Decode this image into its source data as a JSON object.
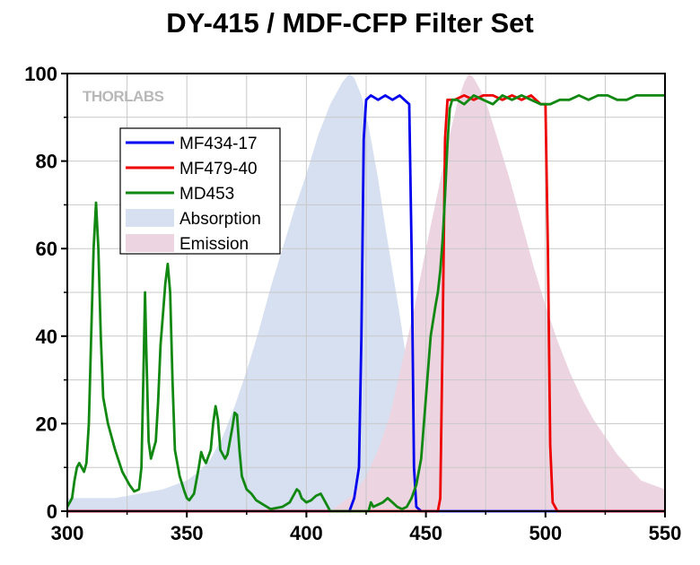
{
  "chart_data": {
    "type": "line",
    "title": "DY-415 / MDF-CFP Filter Set",
    "watermark": "THORLABS",
    "xlim": [
      300,
      550
    ],
    "ylim": [
      0,
      100
    ],
    "x_ticks": [
      300,
      350,
      400,
      450,
      500,
      550
    ],
    "y_ticks": [
      0,
      20,
      40,
      60,
      80,
      100
    ],
    "grid": true,
    "legend_position": "upper-left",
    "series": [
      {
        "name": "MF434-17",
        "kind": "line",
        "color": "#0000ee",
        "points": [
          [
            300,
            0
          ],
          [
            418,
            0
          ],
          [
            420,
            3
          ],
          [
            422,
            10
          ],
          [
            423,
            40
          ],
          [
            424,
            85
          ],
          [
            425,
            94
          ],
          [
            427,
            95
          ],
          [
            430,
            94
          ],
          [
            433,
            95
          ],
          [
            436,
            94
          ],
          [
            439,
            95
          ],
          [
            441,
            94
          ],
          [
            443,
            93
          ],
          [
            444,
            60
          ],
          [
            445,
            10
          ],
          [
            446,
            1
          ],
          [
            448,
            0
          ],
          [
            550,
            0
          ]
        ]
      },
      {
        "name": "MF479-40",
        "kind": "line",
        "color": "#ee0000",
        "points": [
          [
            300,
            0
          ],
          [
            455,
            0
          ],
          [
            456,
            3
          ],
          [
            457,
            40
          ],
          [
            458,
            85
          ],
          [
            459,
            94
          ],
          [
            462,
            94
          ],
          [
            466,
            95
          ],
          [
            470,
            94
          ],
          [
            474,
            95
          ],
          [
            478,
            95
          ],
          [
            482,
            94
          ],
          [
            486,
            95
          ],
          [
            490,
            94
          ],
          [
            494,
            95
          ],
          [
            498,
            93
          ],
          [
            500,
            93
          ],
          [
            501,
            60
          ],
          [
            502,
            15
          ],
          [
            503,
            2
          ],
          [
            505,
            0
          ],
          [
            550,
            0
          ]
        ]
      },
      {
        "name": "MD453",
        "kind": "line",
        "color": "#118811",
        "points": [
          [
            300,
            1
          ],
          [
            301,
            2
          ],
          [
            302,
            3
          ],
          [
            303,
            7
          ],
          [
            304,
            10
          ],
          [
            305,
            11
          ],
          [
            306,
            10
          ],
          [
            307,
            9
          ],
          [
            308,
            11
          ],
          [
            309,
            20
          ],
          [
            310,
            40
          ],
          [
            311,
            60
          ],
          [
            312,
            70.5
          ],
          [
            313,
            60
          ],
          [
            314,
            40
          ],
          [
            315,
            26
          ],
          [
            317,
            20
          ],
          [
            320,
            14
          ],
          [
            323,
            9
          ],
          [
            326,
            6
          ],
          [
            328,
            4.5
          ],
          [
            330,
            5
          ],
          [
            331,
            10
          ],
          [
            332,
            35
          ],
          [
            332.5,
            50
          ],
          [
            333,
            38
          ],
          [
            334,
            16
          ],
          [
            335,
            12
          ],
          [
            337,
            16
          ],
          [
            338,
            25
          ],
          [
            339,
            38
          ],
          [
            340,
            45
          ],
          [
            341,
            52
          ],
          [
            342,
            56.5
          ],
          [
            343,
            50
          ],
          [
            344,
            30
          ],
          [
            345,
            14
          ],
          [
            347,
            8
          ],
          [
            349,
            4.5
          ],
          [
            350,
            3
          ],
          [
            351,
            2.5
          ],
          [
            353,
            4
          ],
          [
            355,
            10
          ],
          [
            356,
            13.5
          ],
          [
            357,
            12
          ],
          [
            358,
            11
          ],
          [
            360,
            14
          ],
          [
            361,
            20
          ],
          [
            362,
            24
          ],
          [
            363,
            21
          ],
          [
            364,
            14
          ],
          [
            366,
            12
          ],
          [
            367,
            13
          ],
          [
            369,
            19
          ],
          [
            370,
            22.5
          ],
          [
            371,
            22
          ],
          [
            372,
            14
          ],
          [
            373,
            8
          ],
          [
            375,
            5
          ],
          [
            377,
            4
          ],
          [
            379,
            2.5
          ],
          [
            382,
            1.5
          ],
          [
            385,
            0.5
          ],
          [
            390,
            1
          ],
          [
            393,
            2
          ],
          [
            395,
            4
          ],
          [
            396,
            5
          ],
          [
            397,
            4.5
          ],
          [
            398,
            3
          ],
          [
            400,
            2
          ],
          [
            402,
            2.5
          ],
          [
            404,
            3.5
          ],
          [
            406,
            4
          ],
          [
            408,
            2
          ],
          [
            410,
            0
          ],
          [
            426,
            0
          ],
          [
            427,
            2
          ],
          [
            428,
            1
          ],
          [
            430,
            1.5
          ],
          [
            432,
            2
          ],
          [
            434,
            3
          ],
          [
            436,
            2
          ],
          [
            438,
            1
          ],
          [
            440,
            0.5
          ],
          [
            442,
            1
          ],
          [
            444,
            3
          ],
          [
            446,
            6
          ],
          [
            448,
            12
          ],
          [
            450,
            26
          ],
          [
            452,
            40
          ],
          [
            454,
            47
          ],
          [
            455,
            50
          ],
          [
            456,
            55
          ],
          [
            457,
            62
          ],
          [
            458,
            72
          ],
          [
            459,
            84
          ],
          [
            460,
            92
          ],
          [
            461,
            94
          ],
          [
            463,
            94
          ],
          [
            466,
            93
          ],
          [
            470,
            95
          ],
          [
            474,
            94
          ],
          [
            478,
            93
          ],
          [
            482,
            95
          ],
          [
            486,
            94
          ],
          [
            490,
            95
          ],
          [
            494,
            94
          ],
          [
            498,
            93
          ],
          [
            502,
            93
          ],
          [
            506,
            94
          ],
          [
            510,
            94
          ],
          [
            514,
            95
          ],
          [
            518,
            94
          ],
          [
            522,
            95
          ],
          [
            526,
            95
          ],
          [
            530,
            94
          ],
          [
            534,
            94
          ],
          [
            538,
            95
          ],
          [
            542,
            95
          ],
          [
            546,
            95
          ],
          [
            550,
            95
          ]
        ]
      },
      {
        "name": "Absorption",
        "kind": "area",
        "color": "#d6e0f1",
        "points": [
          [
            300,
            3
          ],
          [
            310,
            3
          ],
          [
            320,
            3
          ],
          [
            330,
            4
          ],
          [
            340,
            5
          ],
          [
            350,
            7
          ],
          [
            355,
            9
          ],
          [
            360,
            12
          ],
          [
            365,
            17
          ],
          [
            370,
            24
          ],
          [
            375,
            32
          ],
          [
            380,
            41
          ],
          [
            385,
            51
          ],
          [
            390,
            60
          ],
          [
            395,
            69
          ],
          [
            400,
            77
          ],
          [
            405,
            86
          ],
          [
            410,
            93
          ],
          [
            415,
            98
          ],
          [
            418,
            100
          ],
          [
            420,
            99
          ],
          [
            423,
            95
          ],
          [
            426,
            88
          ],
          [
            430,
            76
          ],
          [
            433,
            65
          ],
          [
            436,
            55
          ],
          [
            439,
            45
          ],
          [
            442,
            34
          ],
          [
            445,
            22
          ],
          [
            448,
            12
          ],
          [
            452,
            4
          ],
          [
            455,
            2
          ],
          [
            460,
            0.5
          ],
          [
            465,
            0
          ],
          [
            550,
            0
          ]
        ]
      },
      {
        "name": "Emission",
        "kind": "area",
        "color": "#ecd5e1",
        "points": [
          [
            300,
            0
          ],
          [
            400,
            0
          ],
          [
            410,
            0
          ],
          [
            415,
            2
          ],
          [
            420,
            4
          ],
          [
            425,
            8
          ],
          [
            430,
            14
          ],
          [
            435,
            22
          ],
          [
            440,
            34
          ],
          [
            445,
            46
          ],
          [
            450,
            60
          ],
          [
            455,
            73
          ],
          [
            460,
            86
          ],
          [
            463,
            93
          ],
          [
            466,
            98
          ],
          [
            468,
            100
          ],
          [
            470,
            99
          ],
          [
            473,
            96
          ],
          [
            476,
            92
          ],
          [
            480,
            85
          ],
          [
            485,
            76
          ],
          [
            490,
            66
          ],
          [
            495,
            56
          ],
          [
            500,
            47
          ],
          [
            505,
            39
          ],
          [
            510,
            32
          ],
          [
            515,
            26
          ],
          [
            520,
            21
          ],
          [
            525,
            17
          ],
          [
            530,
            13
          ],
          [
            535,
            10
          ],
          [
            540,
            7
          ],
          [
            545,
            6
          ],
          [
            550,
            5
          ]
        ]
      }
    ]
  }
}
